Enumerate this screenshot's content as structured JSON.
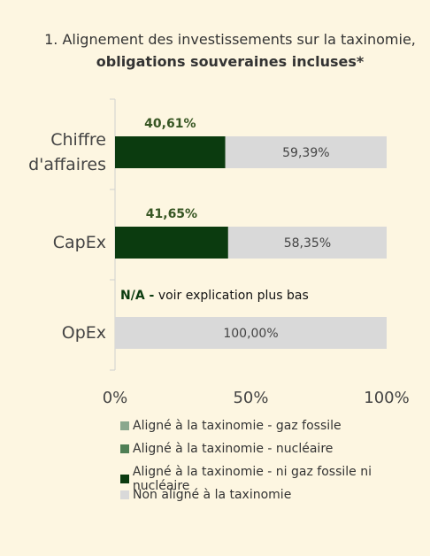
{
  "chart_data": {
    "type": "stacked-bar-horizontal",
    "title": "1. Alignement des investissements sur la taxinomie,",
    "title_bold": "obligations souveraines incluses*",
    "categories": [
      "Chiffre d'affaires",
      "CapEx",
      "OpEx"
    ],
    "series": [
      {
        "name": "Aligné à la taxinomie - gaz fossile",
        "color": "#8aa88d",
        "values": [
          0,
          0,
          0
        ]
      },
      {
        "name": "Aligné à la taxinomie - nucléaire",
        "color": "#4f7f55",
        "values": [
          0,
          0,
          0
        ]
      },
      {
        "name": "Aligné à la taxinomie - ni gaz fossile ni nucléaire",
        "color": "#0b3b0f",
        "values": [
          40.61,
          41.65,
          null
        ],
        "value_labels": [
          "40,61%",
          "41,65%",
          null
        ]
      },
      {
        "name": "Non aligné à la taxinomie",
        "color": "#d9d9d9",
        "values": [
          59.39,
          58.35,
          100
        ],
        "value_labels": [
          "59,39%",
          "58,35%",
          "100,00%"
        ]
      }
    ],
    "annotation": {
      "bold": "N/A -",
      "text": "voir explication plus bas"
    },
    "xlim": [
      0,
      100
    ],
    "xticks": [
      {
        "value": 0,
        "label": "0%"
      },
      {
        "value": 50,
        "label": "50%"
      },
      {
        "value": 100,
        "label": "100%"
      }
    ]
  }
}
